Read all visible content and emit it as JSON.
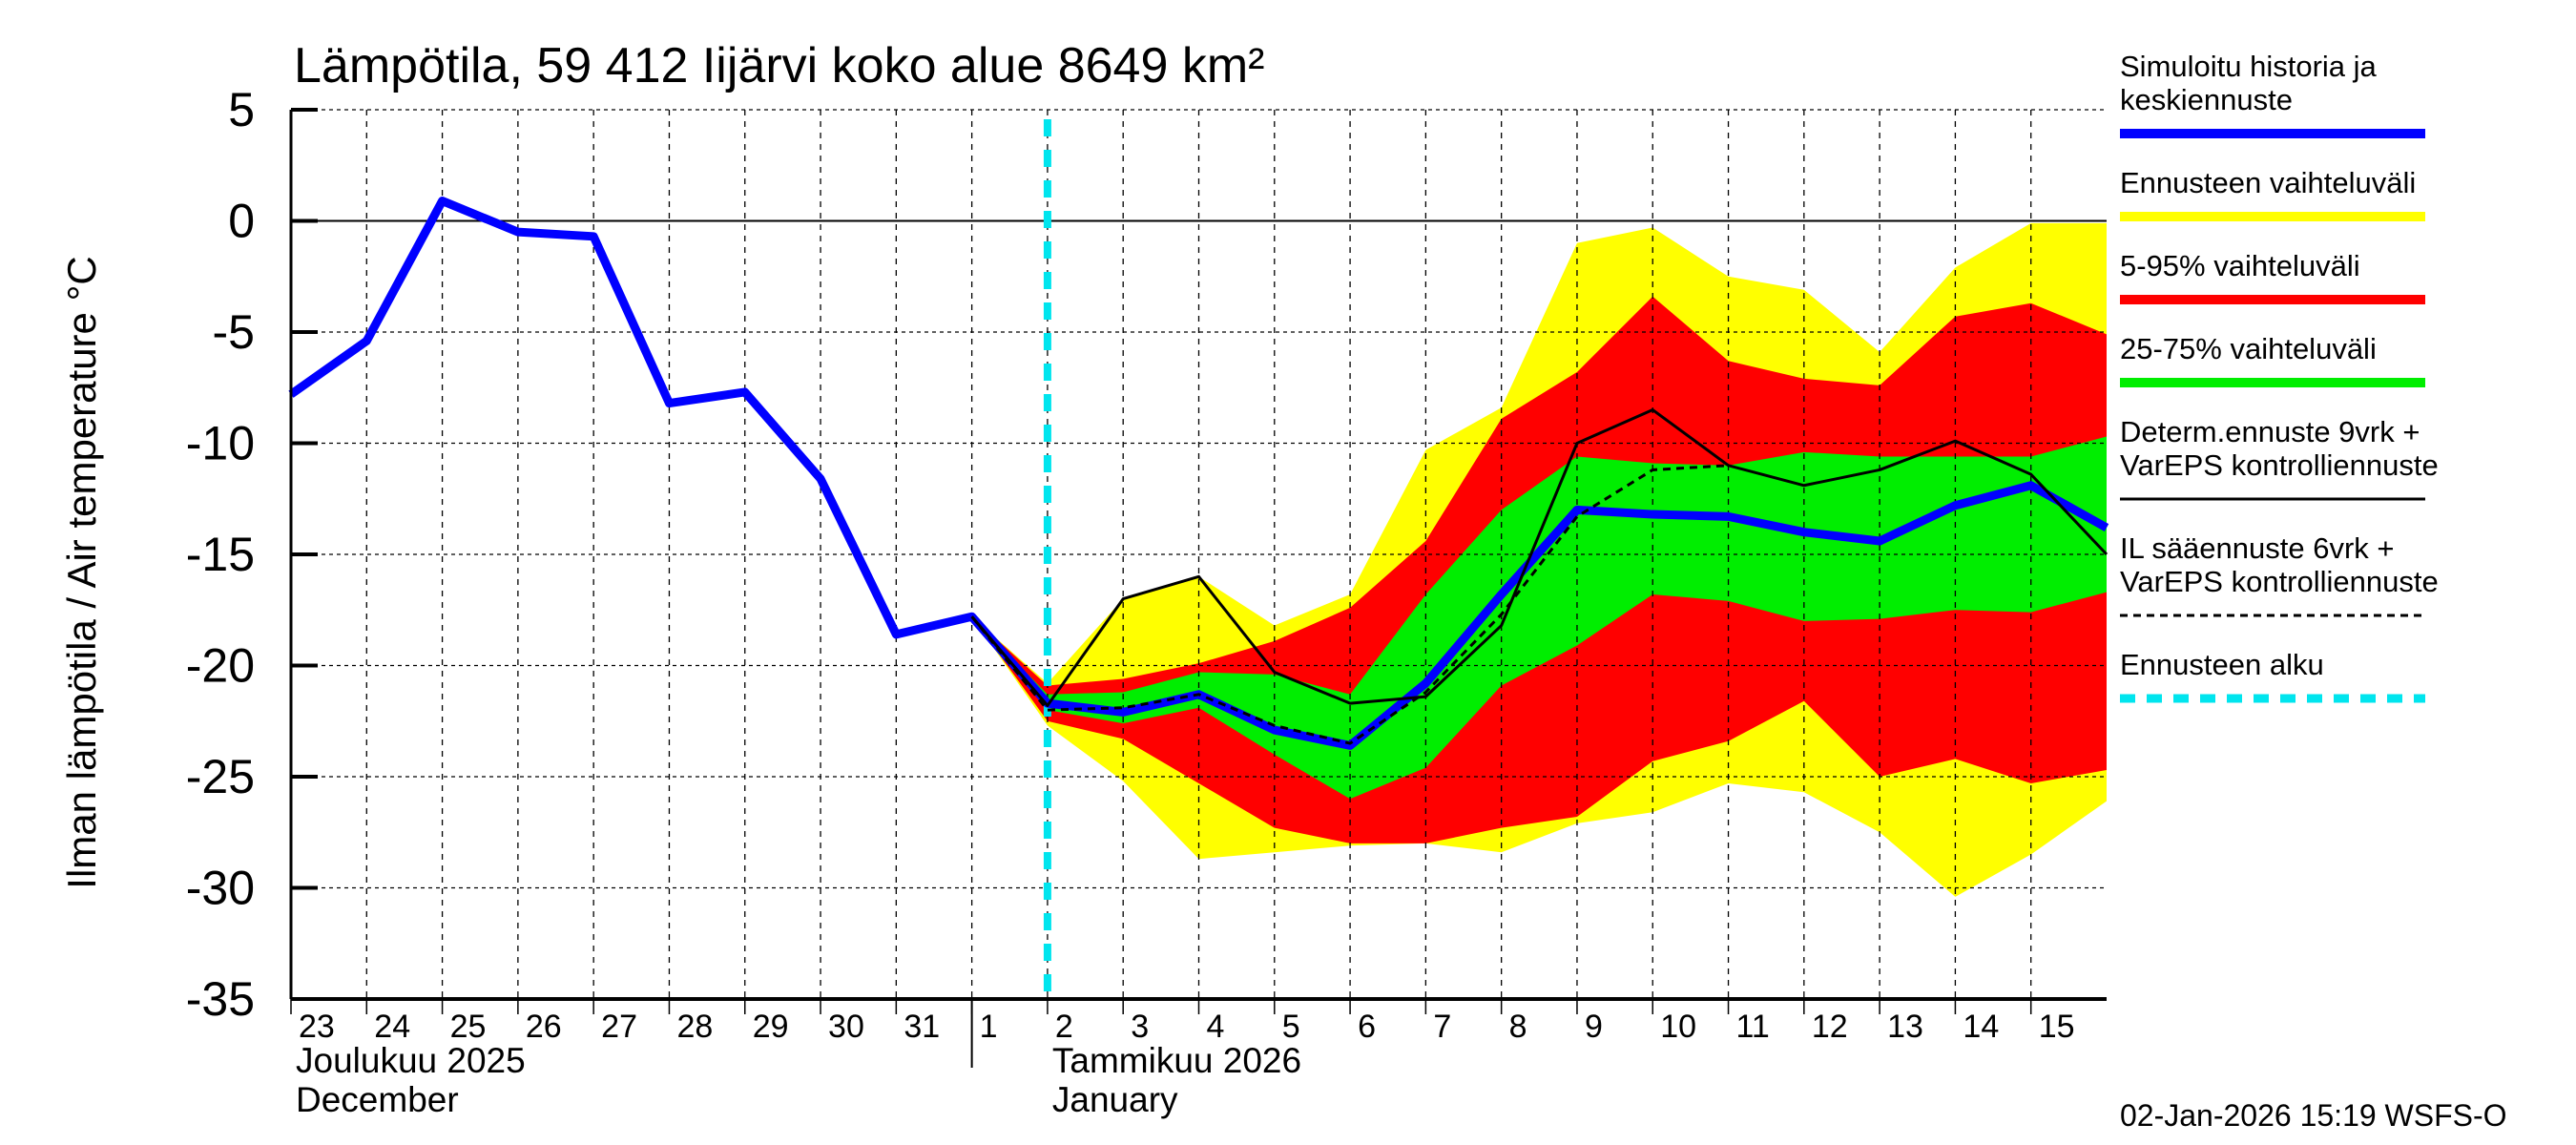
{
  "chart_data": {
    "type": "area",
    "title": "Lämpötila, 59 412 Iijärvi koko alue 8649 km²",
    "ylabel": "Ilman lämpötila / Air temperature   °C",
    "ylim": [
      -35,
      5
    ],
    "yticks": [
      5,
      0,
      -5,
      -10,
      -15,
      -20,
      -25,
      -30,
      -35
    ],
    "grid": true,
    "legend_placement": "right",
    "x_dates": [
      "2025-12-23",
      "2025-12-24",
      "2025-12-25",
      "2025-12-26",
      "2025-12-27",
      "2025-12-28",
      "2025-12-29",
      "2025-12-30",
      "2025-12-31",
      "2026-01-01",
      "2026-01-02",
      "2026-01-03",
      "2026-01-04",
      "2026-01-05",
      "2026-01-06",
      "2026-01-07",
      "2026-01-08",
      "2026-01-09",
      "2026-01-10",
      "2026-01-11",
      "2026-01-12",
      "2026-01-13",
      "2026-01-14",
      "2026-01-15",
      "2026-01-16"
    ],
    "xtick_labels": [
      "23",
      "24",
      "25",
      "26",
      "27",
      "28",
      "29",
      "30",
      "31",
      "1",
      "2",
      "3",
      "4",
      "5",
      "6",
      "7",
      "8",
      "9",
      "10",
      "11",
      "12",
      "13",
      "14",
      "15"
    ],
    "month_labels": [
      {
        "fi": "Joulukuu  2025",
        "en": "December"
      },
      {
        "fi": "Tammikuu  2026",
        "en": "January"
      }
    ],
    "forecast_start": "2026-01-02",
    "band_dates": [
      "2026-01-01",
      "2026-01-02",
      "2026-01-03",
      "2026-01-04",
      "2026-01-05",
      "2026-01-06",
      "2026-01-07",
      "2026-01-08",
      "2026-01-09",
      "2026-01-10",
      "2026-01-11",
      "2026-01-12",
      "2026-01-13",
      "2026-01-14",
      "2026-01-15",
      "2026-01-16"
    ],
    "bands": [
      {
        "name": "Ennusteen vaihteluväli",
        "color": "#ffff00",
        "upper": [
          -17.8,
          -20.8,
          -17.0,
          -16.0,
          -18.2,
          -16.8,
          -10.3,
          -8.4,
          -1.0,
          -0.3,
          -2.5,
          -3.1,
          -5.9,
          -2.1,
          -0.1,
          -0.1
        ],
        "lower": [
          -17.8,
          -22.7,
          -25.2,
          -28.7,
          -28.4,
          -28.1,
          -28.0,
          -28.4,
          -27.1,
          -26.6,
          -25.3,
          -25.7,
          -27.5,
          -30.4,
          -28.5,
          -26.1
        ]
      },
      {
        "name": "5-95% vaihteluväli",
        "color": "#ff0000",
        "upper": [
          -17.8,
          -20.9,
          -20.6,
          -19.9,
          -18.9,
          -17.4,
          -14.4,
          -8.9,
          -6.8,
          -3.4,
          -6.3,
          -7.1,
          -7.4,
          -4.3,
          -3.7,
          -5.1
        ],
        "lower": [
          -17.8,
          -22.5,
          -23.3,
          -25.3,
          -27.3,
          -28.0,
          -28.0,
          -27.3,
          -26.8,
          -24.3,
          -23.4,
          -21.6,
          -25.0,
          -24.2,
          -25.3,
          -24.7
        ]
      },
      {
        "name": "25-75% vaihteluväli",
        "color": "#00ee00",
        "upper": [
          -17.8,
          -21.3,
          -21.2,
          -20.3,
          -20.4,
          -21.3,
          -16.8,
          -13.0,
          -10.6,
          -10.9,
          -11.0,
          -10.4,
          -10.6,
          -10.6,
          -10.6,
          -9.7
        ],
        "lower": [
          -17.8,
          -22.0,
          -22.6,
          -21.9,
          -24.0,
          -26.0,
          -24.6,
          -20.9,
          -19.1,
          -16.8,
          -17.1,
          -18.0,
          -17.9,
          -17.5,
          -17.6,
          -16.7
        ]
      }
    ],
    "series": [
      {
        "name": "Simuloitu historia ja keskiennuste",
        "color": "#0000ff",
        "dates": "x_dates",
        "values": [
          -7.8,
          -5.4,
          0.9,
          -0.5,
          -0.7,
          -8.2,
          -7.7,
          -11.6,
          -18.6,
          -17.8,
          -21.7,
          -22.1,
          -21.3,
          -22.9,
          -23.6,
          -20.8,
          -16.8,
          -13.0,
          -13.2,
          -13.3,
          -14.0,
          -14.4,
          -12.8,
          -11.9,
          -13.8
        ]
      },
      {
        "name": "Determ.ennuste 9vrk + VarEPS kontrolliennuste",
        "color": "#000000",
        "dates": "band_dates",
        "values": [
          -17.8,
          -21.8,
          -17.0,
          -16.0,
          -20.3,
          -21.7,
          -21.4,
          -18.2,
          -10.0,
          -8.5,
          -11.0,
          -11.9,
          -11.2,
          -9.9,
          -11.4,
          -15.0
        ]
      },
      {
        "name": "IL sääennuste 6vrk + VarEPS kontrolliennuste",
        "color": "#000000",
        "dashed": true,
        "dates": "band_dates",
        "values": [
          -17.8,
          -22.0,
          -21.9,
          -21.3,
          -22.7,
          -23.5,
          -21.2,
          -17.7,
          -13.3,
          -11.2,
          -11.0
        ]
      }
    ],
    "legend": [
      {
        "label1": "Simuloitu historia ja",
        "label2": "keskiennuste",
        "color": "#0000ff",
        "style": "thick"
      },
      {
        "label1": "Ennusteen vaihteluväli",
        "label2": "",
        "color": "#ffff00",
        "style": "thick"
      },
      {
        "label1": "5-95% vaihteluväli",
        "label2": "",
        "color": "#ff0000",
        "style": "thick"
      },
      {
        "label1": "25-75% vaihteluväli",
        "label2": "",
        "color": "#00ee00",
        "style": "thick"
      },
      {
        "label1": "Determ.ennuste 9vrk +",
        "label2": "VarEPS kontrolliennuste",
        "color": "#000000",
        "style": "thin"
      },
      {
        "label1": "IL sääennuste 6vrk  +",
        "label2": "  VarEPS kontrolliennuste",
        "color": "#000000",
        "style": "dashed"
      },
      {
        "label1": "Ennusteen alku",
        "label2": "",
        "color": "#00e5ee",
        "style": "cyan-dashed"
      }
    ],
    "forecast_start_color": "#00e5ee",
    "footer": "02-Jan-2026 15:19 WSFS-O"
  }
}
